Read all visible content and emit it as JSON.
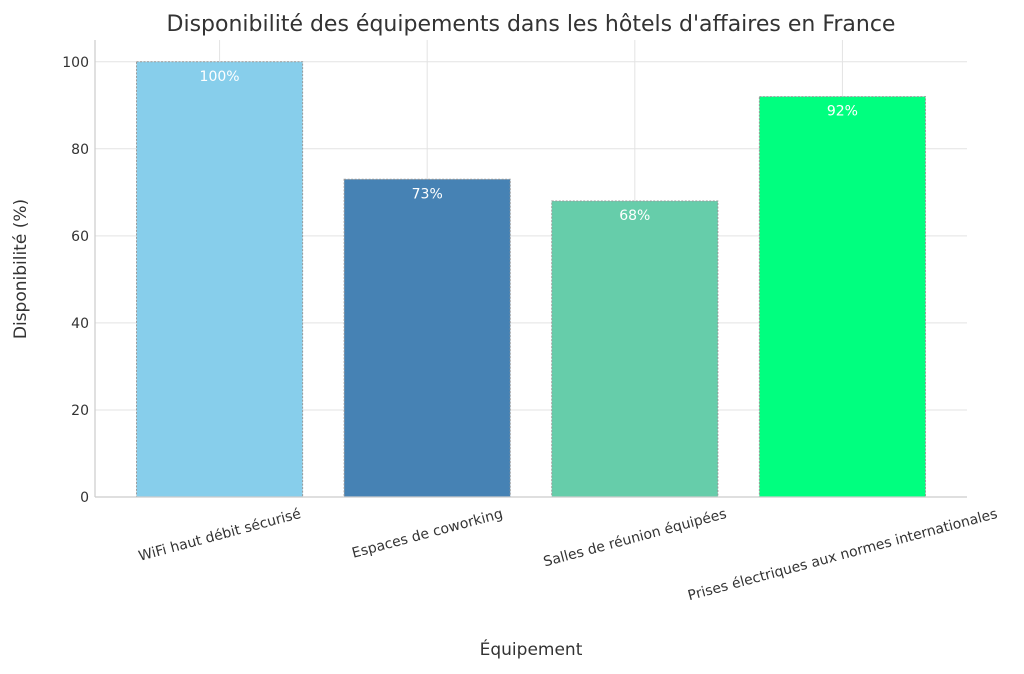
{
  "chart_data": {
    "type": "bar",
    "title": "Disponibilité des équipements dans les hôtels d'affaires en France",
    "xlabel": "Équipement",
    "ylabel": "Disponibilité (%)",
    "categories": [
      "WiFi haut débit sécurisé",
      "Espaces de coworking",
      "Salles de réunion équipées",
      "Prises électriques aux normes internationales"
    ],
    "values": [
      100,
      73,
      68,
      92
    ],
    "data_labels": [
      "100%",
      "73%",
      "68%",
      "92%"
    ],
    "colors": [
      "#87CEEB",
      "#4682B4",
      "#66CDAA",
      "#00FF7F"
    ],
    "edge_color": "#999999",
    "ylim": [
      0,
      105
    ],
    "yticks": [
      0,
      20,
      40,
      60,
      80,
      100
    ],
    "grid": true,
    "legend": "none"
  }
}
